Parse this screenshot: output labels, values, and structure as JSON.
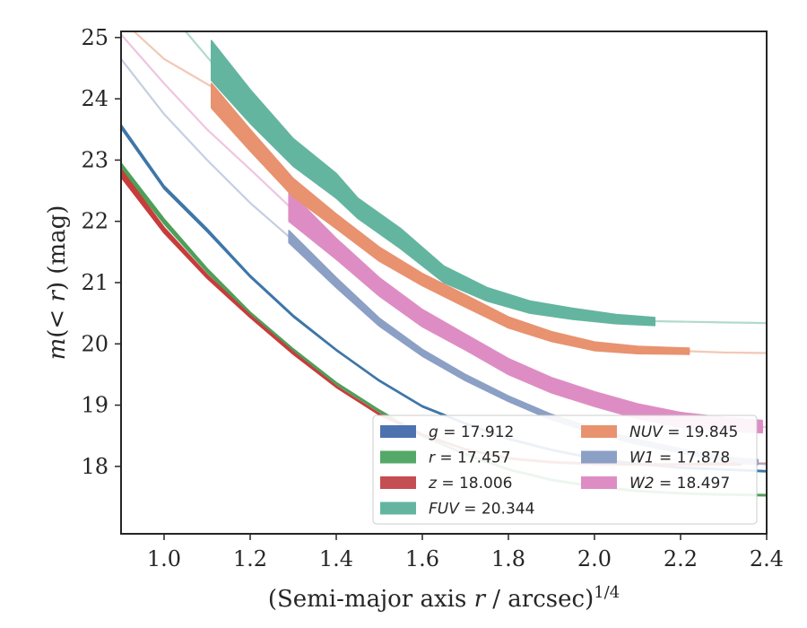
{
  "chart_data": {
    "type": "line",
    "title": "",
    "xlabel": "(Semi-major axis r / arcsec)^{1/4}",
    "xlabel_parts": {
      "main": "(Semi-major axis ",
      "var": "r",
      "mid": " / arcsec)",
      "sup": "1/4"
    },
    "ylabel": "m(< r) (mag)",
    "ylabel_parts": {
      "pre": "m",
      "open": "(",
      "var": "< r",
      "close": ")",
      "unit": " (mag)"
    },
    "xlim": [
      0.9,
      2.4
    ],
    "ylim": [
      25.1,
      16.9
    ],
    "y_inverted": true,
    "xticks": [
      1.0,
      1.2,
      1.4,
      1.6,
      1.8,
      2.0,
      2.2,
      2.4
    ],
    "xtick_labels": [
      "1.0",
      "1.2",
      "1.4",
      "1.6",
      "1.8",
      "2.0",
      "2.2",
      "2.4"
    ],
    "yticks": [
      18,
      19,
      20,
      21,
      22,
      23,
      24,
      25
    ],
    "ytick_labels": [
      "18",
      "19",
      "20",
      "21",
      "22",
      "23",
      "24",
      "25"
    ],
    "grid": false,
    "legend_position": "lower-right",
    "legend": [
      {
        "name": "g = 17.912",
        "sym": "g",
        "val": "17.912",
        "color": "#4C72B0"
      },
      {
        "name": "r = 17.457",
        "sym": "r",
        "val": "17.457",
        "color": "#55A868"
      },
      {
        "name": "z = 18.006",
        "sym": "z",
        "val": "18.006",
        "color": "#C44E52"
      },
      {
        "name": "FUV = 20.344",
        "sym": "FUV",
        "val": "20.344",
        "color": "#64B5A0"
      },
      {
        "name": "NUV = 19.845",
        "sym": "NUV",
        "val": "19.845",
        "color": "#E8926F"
      },
      {
        "name": "W1 = 17.878",
        "sym": "W1",
        "val": "17.878",
        "color": "#8C9FC4"
      },
      {
        "name": "W2 = 18.497",
        "sym": "W2",
        "val": "18.497",
        "color": "#DE8DC4"
      }
    ],
    "series": [
      {
        "name": "g = 17.912",
        "color": "#3F76A8",
        "model": [
          [
            0.9,
            23.55
          ],
          [
            1.0,
            22.55
          ],
          [
            1.1,
            21.85
          ],
          [
            1.2,
            21.1
          ],
          [
            1.3,
            20.45
          ],
          [
            1.4,
            19.9
          ],
          [
            1.5,
            19.4
          ],
          [
            1.6,
            18.98
          ],
          [
            1.7,
            18.7
          ],
          [
            1.8,
            18.45
          ],
          [
            1.9,
            18.27
          ],
          [
            2.0,
            18.13
          ],
          [
            2.1,
            18.04
          ],
          [
            2.2,
            17.98
          ],
          [
            2.3,
            17.95
          ],
          [
            2.4,
            17.92
          ]
        ],
        "band": [
          [
            0.9,
            23.52,
            23.58
          ],
          [
            1.0,
            22.53,
            22.58
          ],
          [
            1.1,
            21.83,
            21.88
          ],
          [
            1.2,
            21.09,
            21.12
          ],
          [
            1.3,
            20.44,
            20.47
          ],
          [
            1.4,
            19.89,
            19.91
          ],
          [
            1.5,
            19.39,
            19.41
          ],
          [
            1.6,
            18.97,
            18.99
          ],
          [
            1.7,
            18.69,
            18.71
          ],
          [
            1.8,
            18.44,
            18.46
          ],
          [
            1.9,
            18.26,
            18.28
          ],
          [
            2.0,
            18.12,
            18.14
          ],
          [
            2.1,
            18.03,
            18.05
          ],
          [
            2.2,
            17.97,
            17.99
          ],
          [
            2.3,
            17.94,
            17.96
          ],
          [
            2.4,
            17.91,
            17.93
          ]
        ]
      },
      {
        "name": "r = 17.457",
        "color": "#4E9F5A",
        "model": [
          [
            0.9,
            22.9
          ],
          [
            1.0,
            22.0
          ],
          [
            1.1,
            21.2
          ],
          [
            1.2,
            20.5
          ],
          [
            1.3,
            19.9
          ],
          [
            1.4,
            19.35
          ],
          [
            1.5,
            18.9
          ],
          [
            1.6,
            18.5
          ],
          [
            1.7,
            18.2
          ],
          [
            1.8,
            17.95
          ],
          [
            1.9,
            17.78
          ],
          [
            2.0,
            17.67
          ],
          [
            2.1,
            17.6
          ],
          [
            2.2,
            17.56
          ],
          [
            2.3,
            17.54
          ],
          [
            2.4,
            17.53
          ]
        ],
        "band": [
          [
            0.9,
            22.85,
            22.95
          ],
          [
            1.0,
            21.96,
            22.04
          ],
          [
            1.1,
            21.17,
            21.23
          ],
          [
            1.2,
            20.48,
            20.52
          ],
          [
            1.3,
            19.88,
            19.92
          ],
          [
            1.4,
            19.34,
            19.37
          ],
          [
            1.5,
            18.89,
            18.92
          ],
          [
            1.6,
            18.49,
            18.51
          ],
          [
            1.7,
            18.19,
            18.21
          ],
          [
            1.8,
            17.94,
            17.96
          ],
          [
            1.9,
            17.77,
            17.79
          ],
          [
            2.0,
            17.66,
            17.68
          ],
          [
            2.1,
            17.59,
            17.61
          ],
          [
            2.2,
            17.55,
            17.57
          ],
          [
            2.3,
            17.53,
            17.55
          ],
          [
            2.4,
            17.52,
            17.54
          ]
        ]
      },
      {
        "name": "z = 18.006",
        "color": "#C83C3C",
        "model": [
          [
            0.9,
            22.78
          ],
          [
            1.0,
            21.85
          ],
          [
            1.1,
            21.1
          ],
          [
            1.2,
            20.45
          ],
          [
            1.3,
            19.85
          ],
          [
            1.4,
            19.3
          ],
          [
            1.5,
            18.85
          ],
          [
            1.6,
            18.52
          ],
          [
            1.7,
            18.28
          ],
          [
            1.8,
            18.13
          ],
          [
            1.9,
            18.07
          ],
          [
            2.0,
            18.04
          ],
          [
            2.1,
            18.03
          ],
          [
            2.2,
            18.03
          ],
          [
            2.3,
            18.04
          ],
          [
            2.4,
            18.05
          ]
        ],
        "band": [
          [
            0.9,
            22.72,
            22.85
          ],
          [
            1.0,
            21.81,
            21.9
          ],
          [
            1.1,
            21.07,
            21.13
          ],
          [
            1.2,
            20.43,
            20.47
          ],
          [
            1.3,
            19.83,
            19.87
          ],
          [
            1.4,
            19.29,
            19.31
          ],
          [
            1.5,
            18.84,
            18.86
          ],
          [
            1.6,
            18.51,
            18.53
          ],
          [
            1.7,
            18.27,
            18.29
          ],
          [
            1.8,
            18.12,
            18.14
          ],
          [
            1.9,
            18.06,
            18.08
          ],
          [
            2.0,
            18.03,
            18.05
          ],
          [
            2.1,
            18.02,
            18.04
          ],
          [
            2.2,
            18.02,
            18.04
          ],
          [
            2.3,
            18.02,
            18.06
          ],
          [
            2.34,
            18.02,
            18.07
          ]
        ]
      },
      {
        "name": "W1 = 17.878",
        "color": "#8C9FC4",
        "model": [
          [
            0.9,
            24.65
          ],
          [
            1.0,
            23.75
          ],
          [
            1.1,
            23.0
          ],
          [
            1.2,
            22.3
          ],
          [
            1.29,
            21.75
          ],
          [
            1.4,
            21.0
          ],
          [
            1.5,
            20.35
          ],
          [
            1.6,
            19.85
          ],
          [
            1.7,
            19.45
          ],
          [
            1.8,
            19.1
          ],
          [
            1.9,
            18.8
          ],
          [
            2.0,
            18.58
          ],
          [
            2.1,
            18.4
          ],
          [
            2.2,
            18.25
          ],
          [
            2.3,
            18.12
          ],
          [
            2.4,
            18.03
          ]
        ],
        "band": [
          [
            1.29,
            21.65,
            21.85
          ],
          [
            1.4,
            20.92,
            21.08
          ],
          [
            1.5,
            20.29,
            20.42
          ],
          [
            1.6,
            19.8,
            19.91
          ],
          [
            1.7,
            19.4,
            19.5
          ],
          [
            1.8,
            19.06,
            19.15
          ],
          [
            1.9,
            18.76,
            18.85
          ],
          [
            2.0,
            18.54,
            18.62
          ],
          [
            2.1,
            18.36,
            18.44
          ],
          [
            2.2,
            18.22,
            18.29
          ],
          [
            2.3,
            18.09,
            18.16
          ],
          [
            2.38,
            18.03,
            18.11
          ]
        ]
      },
      {
        "name": "W2 = 18.497",
        "color": "#DE8DC4",
        "model": [
          [
            0.9,
            25.05
          ],
          [
            1.0,
            24.25
          ],
          [
            1.1,
            23.5
          ],
          [
            1.2,
            22.85
          ],
          [
            1.29,
            22.25
          ],
          [
            1.4,
            21.55
          ],
          [
            1.5,
            20.95
          ],
          [
            1.6,
            20.45
          ],
          [
            1.7,
            20.05
          ],
          [
            1.8,
            19.65
          ],
          [
            1.9,
            19.35
          ],
          [
            2.0,
            19.12
          ],
          [
            2.1,
            18.92
          ],
          [
            2.2,
            18.78
          ],
          [
            2.3,
            18.7
          ],
          [
            2.4,
            18.64
          ]
        ],
        "band": [
          [
            1.29,
            22.0,
            22.5
          ],
          [
            1.4,
            21.38,
            21.72
          ],
          [
            1.5,
            20.78,
            21.08
          ],
          [
            1.6,
            20.28,
            20.56
          ],
          [
            1.7,
            19.9,
            20.16
          ],
          [
            1.8,
            19.5,
            19.76
          ],
          [
            1.9,
            19.2,
            19.45
          ],
          [
            2.0,
            18.98,
            19.22
          ],
          [
            2.1,
            18.78,
            19.02
          ],
          [
            2.2,
            18.64,
            18.88
          ],
          [
            2.3,
            18.58,
            18.8
          ],
          [
            2.39,
            18.55,
            18.75
          ]
        ]
      },
      {
        "name": "NUV = 19.845",
        "color": "#E8926F",
        "model": [
          [
            0.93,
            25.1
          ],
          [
            1.0,
            24.65
          ],
          [
            1.11,
            24.2
          ],
          [
            1.2,
            23.35
          ],
          [
            1.3,
            22.55
          ],
          [
            1.4,
            22.0
          ],
          [
            1.5,
            21.45
          ],
          [
            1.6,
            21.05
          ],
          [
            1.7,
            20.7
          ],
          [
            1.8,
            20.35
          ],
          [
            1.9,
            20.12
          ],
          [
            2.0,
            19.96
          ],
          [
            2.1,
            19.9
          ],
          [
            2.22,
            19.88
          ],
          [
            2.3,
            19.86
          ],
          [
            2.4,
            19.85
          ]
        ],
        "band": [
          [
            1.11,
            23.85,
            24.25
          ],
          [
            1.2,
            23.15,
            23.5
          ],
          [
            1.3,
            22.4,
            22.7
          ],
          [
            1.4,
            21.88,
            22.12
          ],
          [
            1.5,
            21.35,
            21.58
          ],
          [
            1.6,
            20.95,
            21.15
          ],
          [
            1.7,
            20.6,
            20.8
          ],
          [
            1.8,
            20.26,
            20.44
          ],
          [
            1.9,
            20.04,
            20.2
          ],
          [
            2.0,
            19.89,
            20.03
          ],
          [
            2.1,
            19.84,
            19.96
          ],
          [
            2.22,
            19.83,
            19.93
          ]
        ]
      },
      {
        "name": "FUV = 20.344",
        "color": "#64B5A0",
        "model": [
          [
            1.05,
            25.1
          ],
          [
            1.11,
            24.6
          ],
          [
            1.2,
            23.85
          ],
          [
            1.3,
            23.1
          ],
          [
            1.4,
            22.55
          ],
          [
            1.45,
            22.2
          ],
          [
            1.55,
            21.72
          ],
          [
            1.65,
            21.12
          ],
          [
            1.75,
            20.8
          ],
          [
            1.85,
            20.6
          ],
          [
            1.95,
            20.48
          ],
          [
            2.05,
            20.4
          ],
          [
            2.14,
            20.37
          ],
          [
            2.3,
            20.35
          ],
          [
            2.4,
            20.34
          ]
        ],
        "band": [
          [
            1.11,
            24.3,
            24.95
          ],
          [
            1.2,
            23.6,
            24.15
          ],
          [
            1.3,
            22.9,
            23.35
          ],
          [
            1.4,
            22.38,
            22.78
          ],
          [
            1.45,
            22.05,
            22.38
          ],
          [
            1.55,
            21.55,
            21.88
          ],
          [
            1.65,
            21.0,
            21.27
          ],
          [
            1.75,
            20.7,
            20.92
          ],
          [
            1.85,
            20.5,
            20.7
          ],
          [
            1.95,
            20.4,
            20.58
          ],
          [
            2.05,
            20.33,
            20.48
          ],
          [
            2.14,
            20.3,
            20.43
          ]
        ]
      }
    ]
  }
}
